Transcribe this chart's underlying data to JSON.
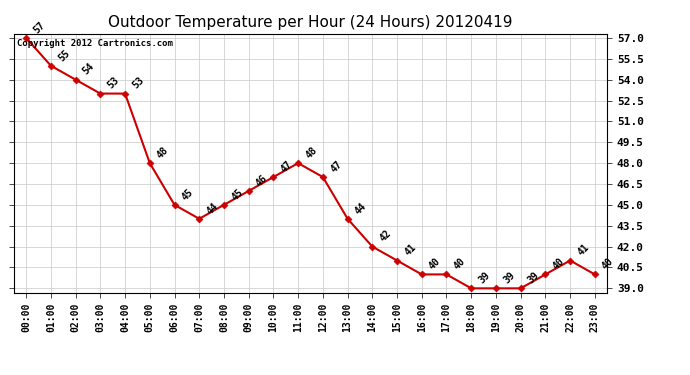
{
  "title": "Outdoor Temperature per Hour (24 Hours) 20120419",
  "copyright_text": "Copyright 2012 Cartronics.com",
  "hours": [
    "00:00",
    "01:00",
    "02:00",
    "03:00",
    "04:00",
    "05:00",
    "06:00",
    "07:00",
    "08:00",
    "09:00",
    "10:00",
    "11:00",
    "12:00",
    "13:00",
    "14:00",
    "15:00",
    "16:00",
    "17:00",
    "18:00",
    "19:00",
    "20:00",
    "21:00",
    "22:00",
    "23:00"
  ],
  "temperatures": [
    57,
    55,
    54,
    53,
    53,
    48,
    45,
    44,
    45,
    46,
    47,
    48,
    47,
    44,
    42,
    41,
    40,
    40,
    39,
    39,
    39,
    40,
    41,
    40
  ],
  "ylim_min": 38.7,
  "ylim_max": 57.3,
  "ytick_start": 39.0,
  "ytick_end": 57.0,
  "ytick_step": 1.5,
  "line_color": "#cc0000",
  "marker_color": "#cc0000",
  "background_color": "#ffffff",
  "plot_bg_color": "#ffffff",
  "grid_color": "#c8c8c8",
  "title_fontsize": 11,
  "annotation_fontsize": 7,
  "copyright_fontsize": 6.5,
  "xtick_fontsize": 7,
  "ytick_fontsize": 8
}
